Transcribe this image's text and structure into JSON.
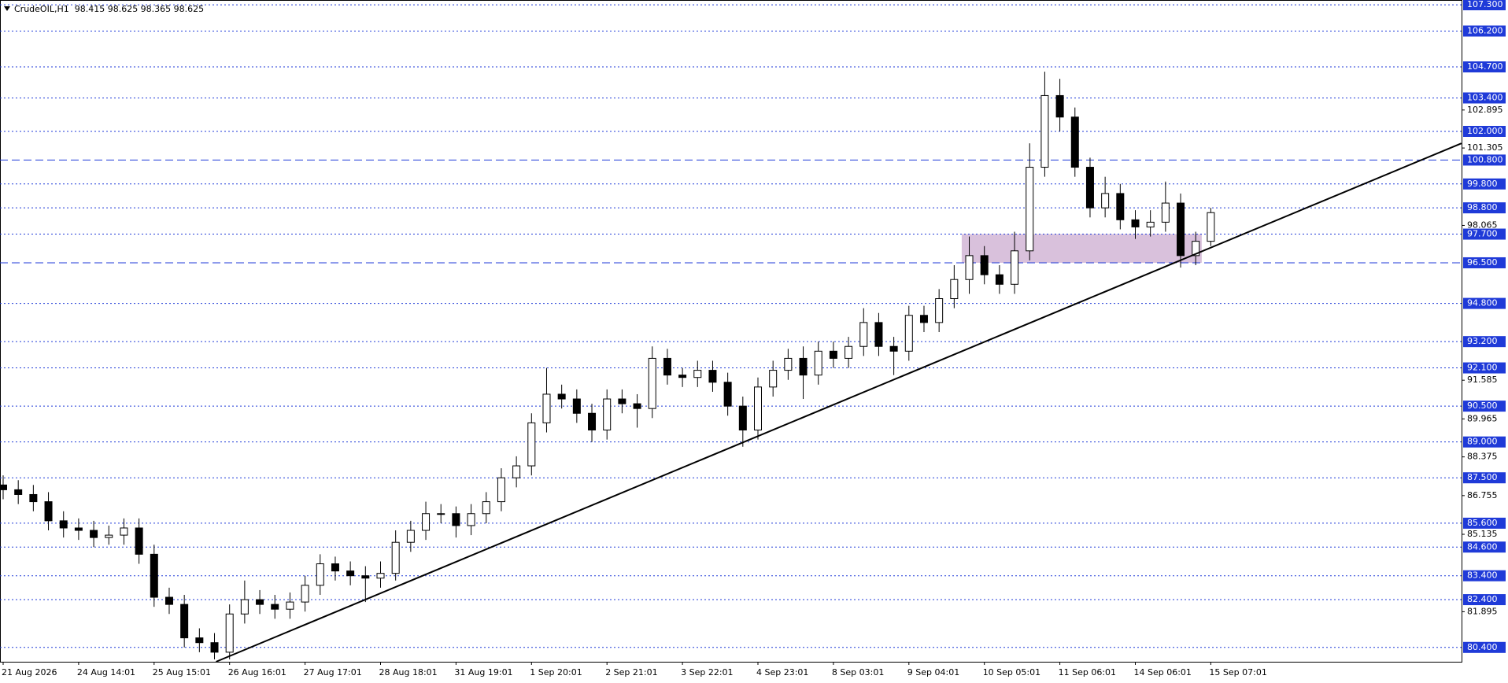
{
  "chart_data": {
    "type": "candlestick",
    "title": "CrudeOIL,H1  98.415 98.625 98.365 98.625",
    "categories": [
      "21 Aug 2026",
      null,
      null,
      null,
      null,
      "24 Aug 14:01",
      null,
      null,
      null,
      null,
      "25 Aug 15:01",
      null,
      null,
      null,
      null,
      "26 Aug 16:01",
      null,
      null,
      null,
      null,
      "27 Aug 17:01",
      null,
      null,
      null,
      null,
      "28 Aug 18:01",
      null,
      null,
      null,
      null,
      "31 Aug 19:01",
      null,
      null,
      null,
      null,
      "1 Sep 20:01",
      null,
      null,
      null,
      null,
      "2 Sep 21:01",
      null,
      null,
      null,
      null,
      "3 Sep 22:01",
      null,
      null,
      null,
      null,
      "4 Sep 23:01",
      null,
      null,
      null,
      null,
      "8 Sep 03:01",
      null,
      null,
      null,
      null,
      "9 Sep 04:01",
      null,
      null,
      null,
      null,
      "10 Sep 05:01",
      null,
      null,
      null,
      null,
      "11 Sep 06:01",
      null,
      null,
      null,
      null,
      "14 Sep 06:01",
      null,
      null,
      null,
      null,
      "15 Sep 07:01"
    ],
    "open": [
      87.2,
      87.0,
      86.8,
      86.5,
      85.7,
      85.4,
      85.3,
      85.0,
      85.1,
      85.4,
      84.3,
      82.5,
      82.2,
      80.8,
      80.6,
      80.2,
      81.8,
      82.4,
      82.2,
      82.0,
      82.3,
      83.0,
      83.9,
      83.6,
      83.4,
      83.3,
      83.5,
      84.8,
      85.3,
      86.0,
      86.0,
      85.5,
      86.0,
      86.5,
      87.5,
      88.0,
      89.8,
      91.0,
      90.8,
      90.2,
      89.5,
      90.8,
      90.6,
      90.4,
      92.5,
      91.8,
      91.7,
      92.0,
      91.5,
      90.5,
      89.5,
      91.3,
      92.0,
      92.5,
      91.8,
      92.8,
      92.5,
      93.0,
      94.0,
      93.0,
      92.8,
      94.3,
      94.0,
      95.0,
      95.8,
      96.8,
      96.0,
      95.6,
      97.0,
      100.5,
      103.5,
      102.6,
      100.5,
      98.8,
      99.4,
      98.3,
      98.0,
      98.2,
      99.0,
      96.8,
      97.4
    ],
    "high": [
      87.6,
      87.4,
      87.2,
      86.9,
      86.1,
      85.8,
      85.7,
      85.5,
      85.8,
      85.8,
      84.7,
      82.9,
      82.6,
      81.2,
      81.0,
      82.2,
      83.2,
      82.8,
      82.6,
      82.7,
      83.4,
      84.3,
      84.2,
      84.0,
      83.8,
      84.0,
      85.3,
      85.7,
      86.5,
      86.4,
      86.3,
      86.4,
      86.9,
      87.9,
      88.4,
      90.2,
      92.1,
      91.4,
      91.2,
      90.6,
      91.2,
      91.2,
      91.0,
      93.0,
      92.9,
      92.1,
      92.4,
      92.4,
      91.9,
      90.9,
      91.7,
      92.4,
      92.9,
      93.0,
      93.2,
      93.2,
      93.4,
      94.6,
      94.4,
      93.4,
      94.7,
      94.7,
      95.4,
      96.4,
      97.6,
      97.2,
      96.4,
      97.8,
      101.5,
      104.5,
      104.2,
      103.0,
      100.9,
      100.1,
      99.8,
      98.7,
      98.7,
      99.9,
      99.4,
      97.8,
      98.8
    ],
    "low": [
      86.6,
      86.4,
      86.1,
      85.3,
      85.0,
      84.9,
      84.6,
      84.7,
      84.7,
      83.9,
      82.1,
      81.8,
      80.4,
      80.2,
      79.9,
      79.9,
      81.4,
      81.8,
      81.6,
      81.6,
      81.9,
      82.6,
      83.2,
      83.0,
      82.3,
      82.9,
      83.2,
      84.4,
      84.9,
      85.6,
      85.0,
      85.1,
      85.6,
      86.1,
      87.1,
      87.6,
      89.4,
      90.4,
      89.8,
      89.0,
      89.1,
      90.2,
      89.6,
      90.0,
      91.4,
      91.3,
      91.3,
      91.1,
      90.1,
      88.8,
      89.1,
      90.9,
      91.6,
      90.8,
      91.4,
      92.1,
      92.1,
      92.6,
      92.6,
      91.8,
      92.4,
      93.6,
      93.6,
      94.6,
      95.2,
      95.6,
      95.2,
      95.2,
      96.6,
      100.1,
      102.0,
      100.1,
      98.4,
      98.4,
      97.9,
      97.5,
      97.6,
      97.8,
      96.3,
      96.4,
      97.2
    ],
    "close": [
      87.0,
      86.8,
      86.5,
      85.7,
      85.4,
      85.3,
      85.0,
      85.1,
      85.4,
      84.3,
      82.5,
      82.2,
      80.8,
      80.6,
      80.2,
      81.8,
      82.4,
      82.2,
      82.0,
      82.3,
      83.0,
      83.9,
      83.6,
      83.4,
      83.3,
      83.5,
      84.8,
      85.3,
      86.0,
      86.0,
      85.5,
      86.0,
      86.5,
      87.5,
      88.0,
      89.8,
      91.0,
      90.8,
      90.2,
      89.5,
      90.8,
      90.6,
      90.4,
      92.5,
      91.8,
      91.7,
      92.0,
      91.5,
      90.5,
      89.5,
      91.3,
      92.0,
      92.5,
      91.8,
      92.8,
      92.5,
      93.0,
      94.0,
      93.0,
      92.8,
      94.3,
      94.0,
      95.0,
      95.8,
      96.8,
      96.0,
      95.6,
      97.0,
      100.5,
      103.5,
      102.6,
      100.5,
      98.8,
      99.4,
      98.3,
      98.0,
      98.2,
      99.0,
      96.8,
      97.4,
      98.6
    ],
    "ylim": [
      79.8,
      107.5
    ],
    "yticks": [
      102.895,
      101.305,
      98.065,
      91.585,
      89.965,
      88.375,
      86.755,
      85.135,
      81.895
    ],
    "levels": [
      {
        "value": 107.3,
        "label": "107.300",
        "style": "dotted"
      },
      {
        "value": 106.2,
        "label": "106.200",
        "style": "dotted"
      },
      {
        "value": 104.7,
        "label": "104.700",
        "style": "dotted"
      },
      {
        "value": 103.4,
        "label": "103.400",
        "style": "dotted"
      },
      {
        "value": 102.0,
        "label": "102.000",
        "style": "dotted"
      },
      {
        "value": 100.8,
        "label": "100.800",
        "style": "dashed"
      },
      {
        "value": 99.8,
        "label": "99.800",
        "style": "dotted"
      },
      {
        "value": 98.8,
        "label": "98.800",
        "style": "dotted"
      },
      {
        "value": 97.7,
        "label": "97.700",
        "style": "dotted"
      },
      {
        "value": 96.5,
        "label": "96.500",
        "style": "dashed"
      },
      {
        "value": 94.8,
        "label": "94.800",
        "style": "dotted"
      },
      {
        "value": 93.2,
        "label": "93.200",
        "style": "dotted"
      },
      {
        "value": 92.1,
        "label": "92.100",
        "style": "dotted"
      },
      {
        "value": 90.5,
        "label": "90.500",
        "style": "dotted"
      },
      {
        "value": 89.0,
        "label": "89.000",
        "style": "dotted"
      },
      {
        "value": 87.5,
        "label": "87.500",
        "style": "dotted"
      },
      {
        "value": 85.6,
        "label": "85.600",
        "style": "dotted"
      },
      {
        "value": 84.6,
        "label": "84.600",
        "style": "dotted"
      },
      {
        "value": 83.4,
        "label": "83.400",
        "style": "dotted"
      },
      {
        "value": 82.4,
        "label": "82.400",
        "style": "dotted"
      },
      {
        "value": 80.4,
        "label": "80.400",
        "style": "dotted"
      }
    ],
    "level_color": "#1f3ad8",
    "trendline": {
      "x": [
        14.1,
        96.6
      ],
      "y": [
        79.8,
        101.5
      ],
      "color": "#000000"
    },
    "zone": {
      "x": [
        63.5,
        79.4
      ],
      "y": [
        96.5,
        97.7
      ],
      "color": "#d9c1dc"
    },
    "up_color": "#ffffff",
    "down_color": "#000000"
  }
}
